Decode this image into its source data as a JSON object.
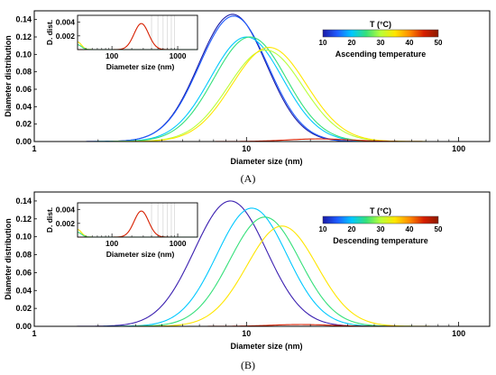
{
  "figure": {
    "colorbar_title": "T (°C)",
    "colorbar_ticks": [
      "10",
      "20",
      "30",
      "40",
      "50"
    ],
    "colormap": [
      "#1a1aa6",
      "#1f5cff",
      "#00c8ff",
      "#35e07a",
      "#b8ff3a",
      "#ffe600",
      "#ff8c00",
      "#d71f00",
      "#8b1a00"
    ]
  },
  "chart_data": [
    {
      "type": "line",
      "panel_label": "(A)",
      "xlabel": "Diameter size (nm)",
      "ylabel": "Diameter distribution",
      "xscale": "log",
      "xlim": [
        1,
        140
      ],
      "ylim": [
        0,
        0.15
      ],
      "x_ticks": [
        1,
        10,
        100
      ],
      "x_tick_labels": [
        "1",
        "10",
        "100"
      ],
      "y_ticks": [
        0,
        0.02,
        0.04,
        0.06,
        0.08,
        0.1,
        0.12,
        0.14
      ],
      "y_tick_labels": [
        "0.00",
        "0.02",
        "0.04",
        "0.06",
        "0.08",
        "0.10",
        "0.12",
        "0.14"
      ],
      "grid": false,
      "legend_text": "Ascending temperature",
      "legend_position": "top-right",
      "series": [
        {
          "color": "#1a1aa6",
          "peak_x": 8.6,
          "peak_y": 0.146,
          "log_width": 0.16
        },
        {
          "color": "#1f5cff",
          "peak_x": 8.7,
          "peak_y": 0.144,
          "log_width": 0.162
        },
        {
          "color": "#00c8ff",
          "peak_x": 10.0,
          "peak_y": 0.12,
          "log_width": 0.17
        },
        {
          "color": "#35e07a",
          "peak_x": 10.4,
          "peak_y": 0.12,
          "log_width": 0.17
        },
        {
          "color": "#b8ff3a",
          "peak_x": 12.3,
          "peak_y": 0.105,
          "log_width": 0.175
        },
        {
          "color": "#ffe600",
          "peak_x": 12.8,
          "peak_y": 0.108,
          "log_width": 0.175
        },
        {
          "color": "#d71f00",
          "peak_x": 22.0,
          "peak_y": 0.003,
          "log_width": 0.15
        }
      ],
      "inset": {
        "xlabel": "Diameter size (nm)",
        "ylabel": "D. dist.",
        "xscale": "log",
        "xlim": [
          30,
          2000
        ],
        "ylim": [
          0,
          0.005
        ],
        "x_ticks": [
          100,
          1000
        ],
        "x_tick_labels": [
          "100",
          "1000"
        ],
        "y_ticks": [
          0.002,
          0.004
        ],
        "y_tick_labels": [
          "0.002",
          "0.004"
        ],
        "series": [
          {
            "color": "#d71f00",
            "peak_x": 280,
            "peak_y": 0.0038,
            "log_width": 0.11
          },
          {
            "color": "#ffe600",
            "peak_x": 30,
            "peak_y": 0.0011,
            "log_width": 0.06
          },
          {
            "color": "#35e07a",
            "peak_x": 30,
            "peak_y": 0.0007,
            "log_width": 0.06
          }
        ]
      }
    },
    {
      "type": "line",
      "panel_label": "(B)",
      "xlabel": "Diameter size (nm)",
      "ylabel": "Diameter distribution",
      "xscale": "log",
      "xlim": [
        1,
        140
      ],
      "ylim": [
        0,
        0.15
      ],
      "x_ticks": [
        1,
        10,
        100
      ],
      "x_tick_labels": [
        "1",
        "10",
        "100"
      ],
      "y_ticks": [
        0,
        0.02,
        0.04,
        0.06,
        0.08,
        0.1,
        0.12,
        0.14
      ],
      "y_tick_labels": [
        "0.00",
        "0.02",
        "0.04",
        "0.06",
        "0.08",
        "0.10",
        "0.12",
        "0.14"
      ],
      "grid": false,
      "legend_text": "Descending temperature",
      "legend_position": "top-right",
      "series": [
        {
          "color": "#3a1fb0",
          "peak_x": 8.4,
          "peak_y": 0.14,
          "log_width": 0.17
        },
        {
          "color": "#00c8ff",
          "peak_x": 10.6,
          "peak_y": 0.132,
          "log_width": 0.165
        },
        {
          "color": "#35e07a",
          "peak_x": 12.2,
          "peak_y": 0.122,
          "log_width": 0.165
        },
        {
          "color": "#ffe600",
          "peak_x": 14.7,
          "peak_y": 0.112,
          "log_width": 0.165
        },
        {
          "color": "#d71f00",
          "peak_x": 18.0,
          "peak_y": 0.002,
          "log_width": 0.14
        }
      ],
      "inset": {
        "xlabel": "Diameter size (nm)",
        "ylabel": "D. dist.",
        "xscale": "log",
        "xlim": [
          30,
          2000
        ],
        "ylim": [
          0,
          0.005
        ],
        "x_ticks": [
          100,
          1000
        ],
        "x_tick_labels": [
          "100",
          "1000"
        ],
        "y_ticks": [
          0.002,
          0.004
        ],
        "y_tick_labels": [
          "0.002",
          "0.004"
        ],
        "series": [
          {
            "color": "#d71f00",
            "peak_x": 280,
            "peak_y": 0.0038,
            "log_width": 0.11
          },
          {
            "color": "#ffe600",
            "peak_x": 30,
            "peak_y": 0.0011,
            "log_width": 0.06
          },
          {
            "color": "#35e07a",
            "peak_x": 30,
            "peak_y": 0.0007,
            "log_width": 0.06
          }
        ]
      }
    }
  ]
}
